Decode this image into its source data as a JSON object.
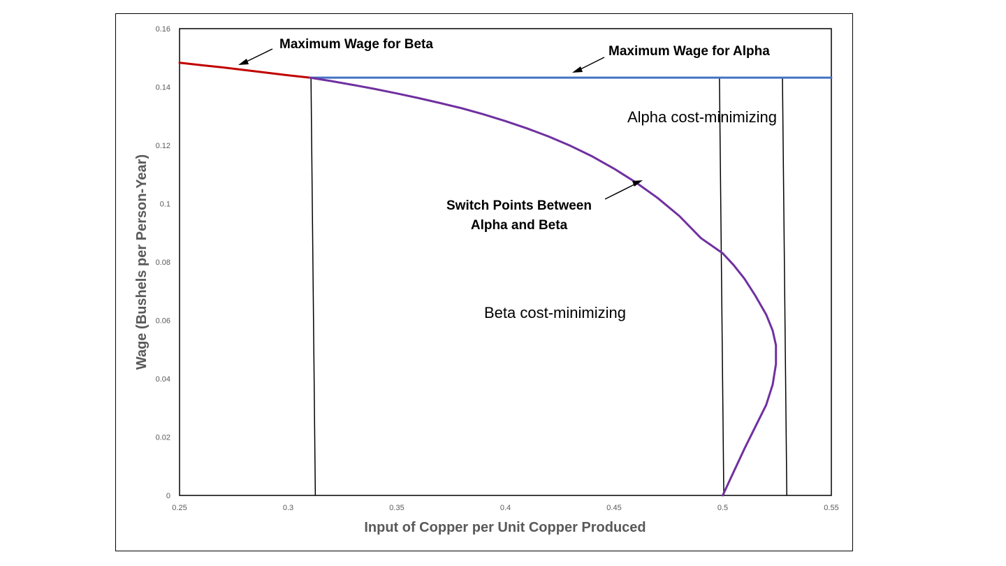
{
  "chart_data": {
    "type": "line",
    "title": "",
    "xlabel": "Input of Copper per Unit Copper Produced",
    "ylabel": "Wage (Bushels per Person-Year)",
    "xlim": [
      0.25,
      0.55
    ],
    "ylim": [
      0,
      0.16
    ],
    "x_ticks": [
      "0.25",
      "0.3",
      "0.35",
      "0.4",
      "0.45",
      "0.5",
      "0.55"
    ],
    "y_ticks": [
      "0",
      "0.02",
      "0.04",
      "0.06",
      "0.08",
      "0.1",
      "0.12",
      "0.14",
      "0.16"
    ],
    "grid": false,
    "series": [
      {
        "color": "#C00000",
        "points": [
          [
            0.25,
            0.1483
          ],
          [
            0.26,
            0.1475
          ],
          [
            0.27,
            0.1467
          ],
          [
            0.28,
            0.1458
          ],
          [
            0.29,
            0.1449
          ],
          [
            0.3,
            0.144
          ],
          [
            0.31,
            0.1432
          ]
        ]
      },
      {
        "color": "#4472C4",
        "points": [
          [
            0.31,
            0.1432
          ],
          [
            0.55,
            0.1432
          ]
        ]
      },
      {
        "color": "#7030A0",
        "points": [
          [
            0.31,
            0.1432
          ],
          [
            0.32,
            0.142
          ],
          [
            0.33,
            0.1407
          ],
          [
            0.34,
            0.1393
          ],
          [
            0.35,
            0.1378
          ],
          [
            0.36,
            0.1362
          ],
          [
            0.37,
            0.1345
          ],
          [
            0.38,
            0.1327
          ],
          [
            0.39,
            0.1306
          ],
          [
            0.4,
            0.1283
          ],
          [
            0.41,
            0.1258
          ],
          [
            0.42,
            0.123
          ],
          [
            0.43,
            0.1198
          ],
          [
            0.44,
            0.1162
          ],
          [
            0.45,
            0.112
          ],
          [
            0.46,
            0.1073
          ],
          [
            0.47,
            0.102
          ],
          [
            0.48,
            0.0958
          ],
          [
            0.49,
            0.0882
          ],
          [
            0.5,
            0.083
          ],
          [
            0.505,
            0.079
          ],
          [
            0.51,
            0.0743
          ],
          [
            0.515,
            0.0685
          ],
          [
            0.52,
            0.062
          ],
          [
            0.523,
            0.0565
          ],
          [
            0.5245,
            0.0515
          ],
          [
            0.5245,
            0.045
          ],
          [
            0.523,
            0.038
          ],
          [
            0.52,
            0.031
          ],
          [
            0.515,
            0.0235
          ],
          [
            0.51,
            0.016
          ],
          [
            0.505,
            0.008
          ],
          [
            0.5,
            0.0
          ]
        ]
      }
    ],
    "switch_lines": [
      [
        [
          0.3105,
          0.1432
        ],
        [
          0.3125,
          0.0
        ]
      ],
      [
        [
          0.4985,
          0.1432
        ],
        [
          0.5005,
          0.0
        ]
      ],
      [
        [
          0.5275,
          0.1432
        ],
        [
          0.5295,
          0.0
        ]
      ]
    ],
    "annotations": {
      "max_wage_beta": "Maximum Wage for Beta",
      "max_wage_alpha": "Maximum Wage for Alpha",
      "switch_points_line1": "Switch Points Between",
      "switch_points_line2": "Alpha and Beta",
      "alpha_region": "Alpha cost-minimizing",
      "beta_region": "Beta cost-minimizing"
    }
  }
}
